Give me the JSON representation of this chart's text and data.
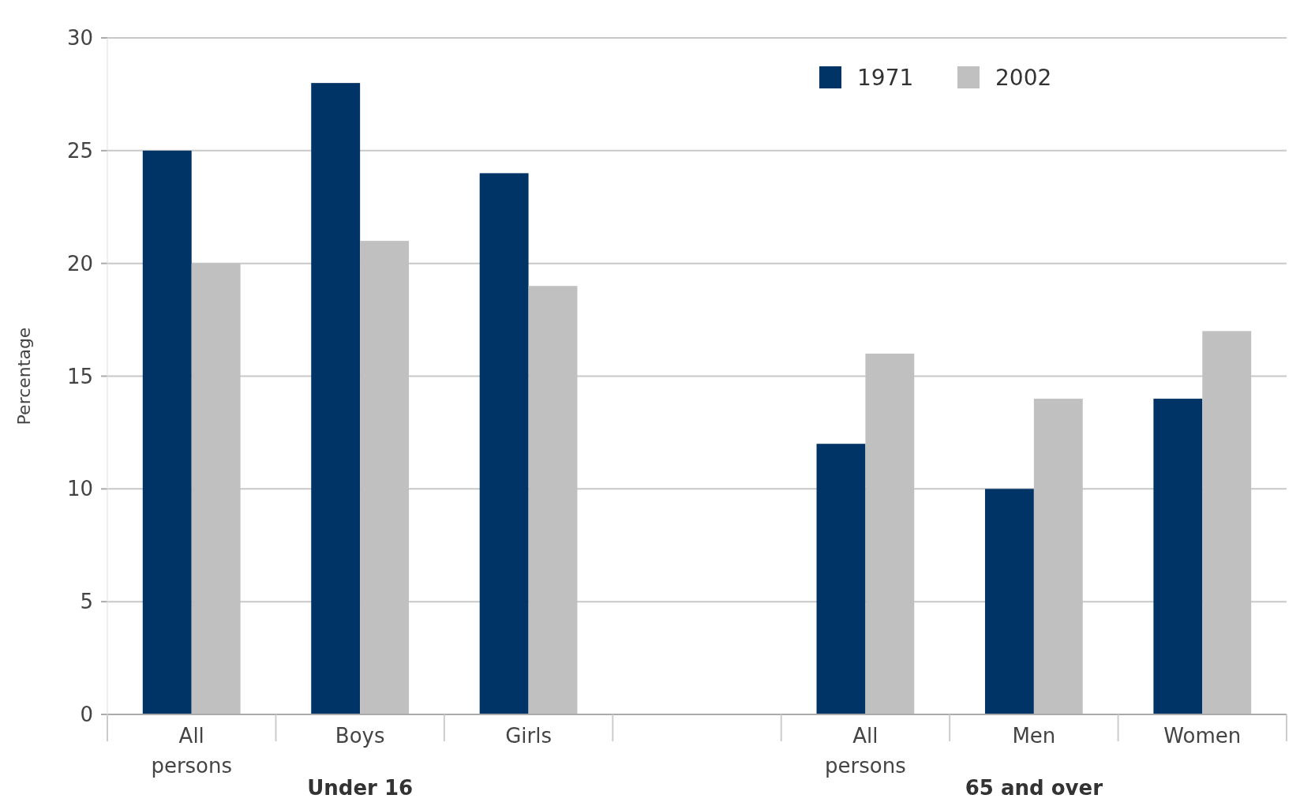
{
  "chart_data": {
    "type": "bar",
    "ylabel": "Percentage",
    "categories": [
      "All persons",
      "Boys",
      "Girls",
      null,
      "All persons",
      "Men",
      "Women"
    ],
    "series": [
      {
        "name": "1971",
        "color": "#003366",
        "values": [
          25,
          28,
          24,
          null,
          12,
          10,
          14
        ]
      },
      {
        "name": "2002",
        "color": "#c0c0c0",
        "values": [
          20,
          21,
          19,
          null,
          16,
          14,
          17
        ]
      }
    ],
    "ylim": [
      0,
      30
    ],
    "yticks": [
      0,
      5,
      10,
      15,
      20,
      25,
      30
    ],
    "grid": "y",
    "legend": "top right",
    "annotations": [
      "Under 16",
      "65 and over"
    ]
  }
}
